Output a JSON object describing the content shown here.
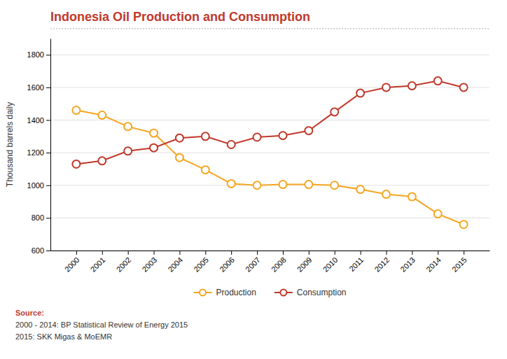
{
  "chart_data": {
    "type": "line",
    "title": "Indonesia Oil Production and Consumption",
    "y_label": "Thousand barrels daily",
    "annotations": [
      "Source:",
      "2000 - 2014: BP Statistical Review of Energy 2015",
      "2015: SKK Migas & MoEMR"
    ],
    "x": [
      2000,
      2001,
      2002,
      2003,
      2004,
      2005,
      2006,
      2007,
      2008,
      2009,
      2010,
      2011,
      2012,
      2013,
      2014,
      2015
    ],
    "series": [
      {
        "name": "Production",
        "color": "#F5A623",
        "marker": "circle",
        "values": [
          1460,
          1430,
          1360,
          1320,
          1170,
          1095,
          1010,
          1000,
          1005,
          1005,
          1000,
          975,
          945,
          930,
          825,
          760
        ]
      },
      {
        "name": "Consumption",
        "color": "#C0392B",
        "marker": "circle",
        "values": [
          1130,
          1150,
          1210,
          1230,
          1290,
          1300,
          1250,
          1295,
          1305,
          1335,
          1450,
          1565,
          1600,
          1610,
          1640,
          1600
        ]
      }
    ],
    "xlim": [
      1999,
      2016
    ],
    "xticks": [
      2000,
      2001,
      2002,
      2003,
      2004,
      2005,
      2006,
      2007,
      2008,
      2009,
      2010,
      2011,
      2012,
      2013,
      2014,
      2015
    ],
    "ylim": [
      600,
      1900
    ],
    "yticks": [
      600,
      800,
      1000,
      1200,
      1400,
      1600,
      1800
    ],
    "grid": true,
    "legend": "bottom"
  }
}
